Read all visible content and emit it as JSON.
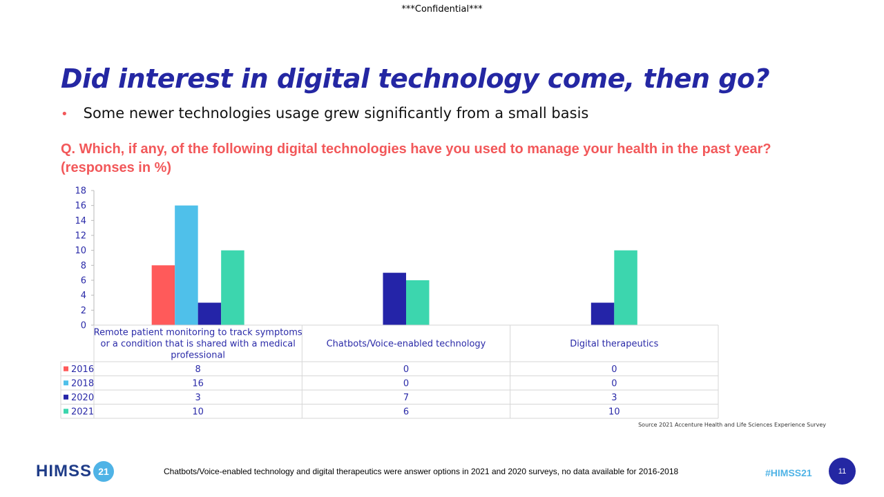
{
  "header": {
    "confidential": "***Confidential***"
  },
  "slide": {
    "title": "Did interest in digital technology come, then go?",
    "bullet": "Some newer technologies usage grew significantly from a small basis",
    "question": "Q. Which, if any, of the following digital technologies have you used to manage your health in the past year? (responses in %)",
    "source": "Source 2021 Accenture Health and Life Sciences Experience Survey",
    "footnote": "Chatbots/Voice-enabled technology and digital therapeutics were answer options in 2021 and 2020 surveys, no data available for 2016-2018",
    "hashtag": "#HIMSS21",
    "page_number": "11"
  },
  "logo": {
    "text": "HIMSS",
    "badge": "21"
  },
  "colors": {
    "title": "#2427a3",
    "accent": "#f2585a",
    "logo_blue": "#1f3c88",
    "light_blue": "#4fb3e6"
  },
  "chart_data": {
    "type": "bar",
    "categories": [
      "Remote patient monitoring to track symptoms or a condition that is shared with a medical professional",
      "Chatbots/Voice-enabled technology",
      "Digital therapeutics"
    ],
    "series": [
      {
        "name": "2016",
        "color": "#ff5a5a",
        "values": [
          8,
          0,
          0
        ]
      },
      {
        "name": "2018",
        "color": "#4fc0ea",
        "values": [
          16,
          0,
          0
        ]
      },
      {
        "name": "2020",
        "color": "#2424a8",
        "values": [
          3,
          7,
          3
        ]
      },
      {
        "name": "2021",
        "color": "#3cd6ae",
        "values": [
          10,
          6,
          10
        ]
      }
    ],
    "ylim": [
      0,
      18
    ],
    "yticks": [
      0,
      2,
      4,
      6,
      8,
      10,
      12,
      14,
      16,
      18
    ],
    "data_table": true
  }
}
